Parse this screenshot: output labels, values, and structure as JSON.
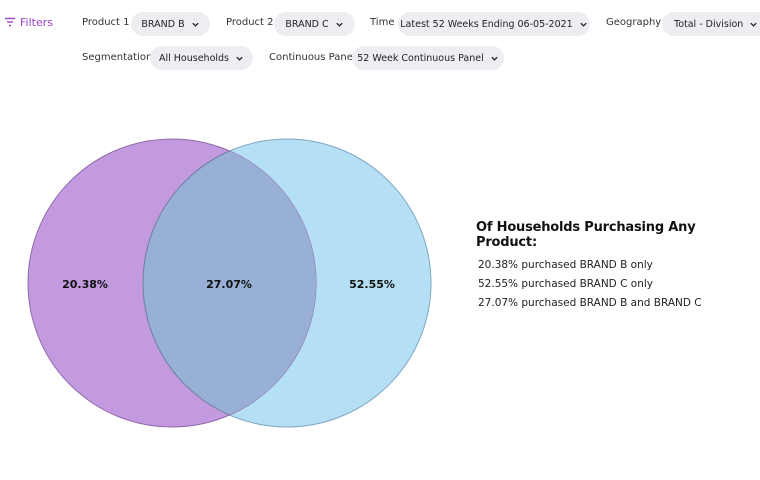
{
  "filters": {
    "title": "Filters",
    "product1": {
      "label": "Product 1",
      "value": "BRAND B"
    },
    "product2": {
      "label": "Product 2",
      "value": "BRAND C"
    },
    "time": {
      "label": "Time",
      "value": "Latest 52 Weeks Ending 06-05-2021"
    },
    "geography": {
      "label": "Geography",
      "value": "Total - Division"
    },
    "segmentation": {
      "label": "Segmentation",
      "value": "All Households"
    },
    "continuous_panel": {
      "label": "Continuous Panel",
      "value": "52 Week Continuous Panel"
    }
  },
  "venn": {
    "left_pct": "20.38%",
    "overlap_pct": "27.07%",
    "right_pct": "52.55%",
    "left_color": "#c39ae0",
    "right_color": "#b5dff5",
    "overlap_color": "#98b0d6"
  },
  "summary": {
    "title": "Of Households Purchasing Any Product:",
    "lines": [
      "20.38% purchased BRAND B only",
      "52.55% purchased BRAND C only",
      "27.07% purchased BRAND B and BRAND C"
    ]
  }
}
